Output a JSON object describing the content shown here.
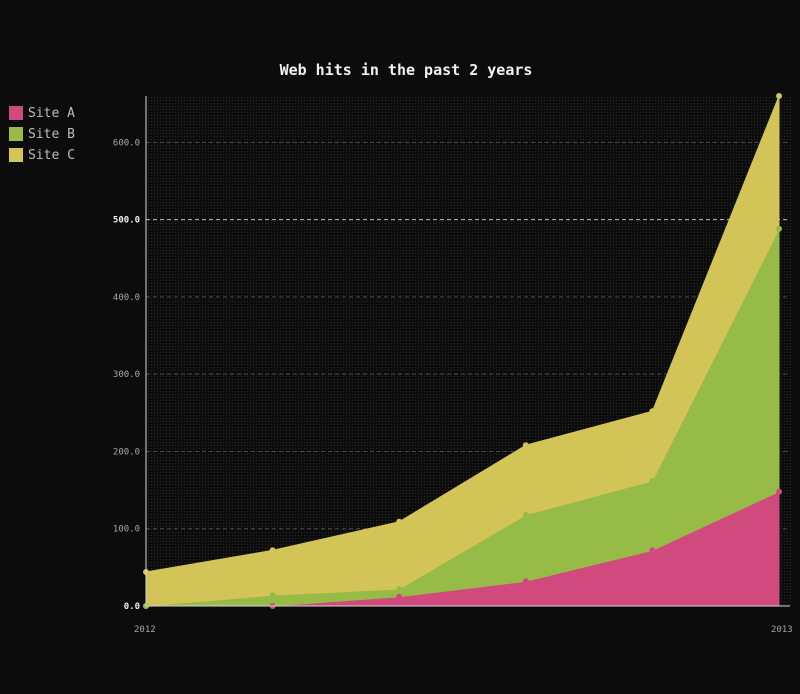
{
  "chart_data": {
    "type": "area",
    "stacked": true,
    "title": "Web hits in the past 2 years",
    "xlabel": "",
    "ylabel": "",
    "x_tick_labels": [
      "2012",
      "2013"
    ],
    "x": [
      0,
      1,
      2,
      3,
      4,
      5
    ],
    "ylim": [
      0,
      660
    ],
    "y_ticks": [
      0,
      100,
      200,
      300,
      400,
      500,
      600
    ],
    "y_tick_labels": [
      "0.0",
      "100.0",
      "200.0",
      "300.0",
      "400.0",
      "500.0",
      "600.0"
    ],
    "major_y_ticks": [
      0,
      500
    ],
    "grid": true,
    "legend_position": "top-left",
    "series": [
      {
        "name": "Site A",
        "color": "#d14a7e",
        "values": [
          0,
          0,
          12,
          32,
          72,
          148
        ]
      },
      {
        "name": "Site B",
        "color": "#97bb47",
        "values": [
          0,
          14,
          10,
          86,
          90,
          340
        ]
      },
      {
        "name": "Site C",
        "color": "#d3c458",
        "values": [
          44,
          58,
          87,
          90,
          90,
          172
        ]
      }
    ]
  }
}
